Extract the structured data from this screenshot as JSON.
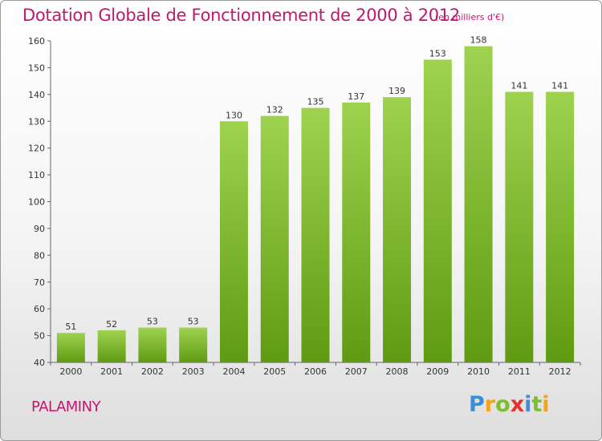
{
  "title": "Dotation Globale de Fonctionnement de 2000 à 2012",
  "unit_note": "(en milliers d'€)",
  "commune": "PALAMINY",
  "logo_text": "Proxiti",
  "colors": {
    "title": "#c0186d",
    "bar_top": "#9ed24f",
    "bar_bottom": "#5f9b12"
  },
  "chart_data": {
    "type": "bar",
    "title": "Dotation Globale de Fonctionnement de 2000 à 2012",
    "subtitle": "(en milliers d'€)",
    "categories": [
      "2000",
      "2001",
      "2002",
      "2003",
      "2004",
      "2005",
      "2006",
      "2007",
      "2008",
      "2009",
      "2010",
      "2011",
      "2012"
    ],
    "values": [
      51,
      52,
      53,
      53,
      130,
      132,
      135,
      137,
      139,
      153,
      158,
      141,
      141
    ],
    "ylim": [
      40,
      160
    ],
    "yticks": [
      40,
      50,
      60,
      70,
      80,
      90,
      100,
      110,
      120,
      130,
      140,
      150,
      160
    ],
    "grid": false,
    "legend": "none"
  }
}
